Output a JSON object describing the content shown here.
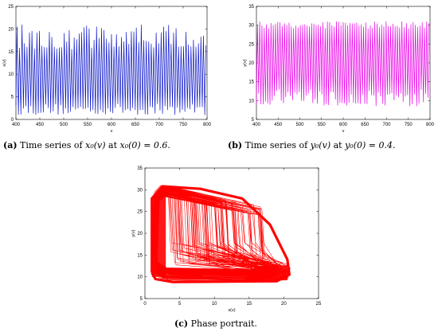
{
  "captions": {
    "a": {
      "tag": "(a)",
      "text": "Time series of",
      "expr": "x₀(v)",
      "mid": "at",
      "cond": "x₀(0) = 0.6."
    },
    "b": {
      "tag": "(b)",
      "text": "Time series of",
      "expr": "y₀(v)",
      "mid": "at",
      "cond": "y₀(0) = 0.4."
    },
    "c": {
      "tag": "(c)",
      "text": "Phase portrait.",
      "expr": "",
      "mid": "",
      "cond": ""
    }
  },
  "chart_data": [
    {
      "id": "a",
      "type": "line",
      "title": "",
      "xlabel": "v",
      "ylabel": "x(v)",
      "xlim": [
        400,
        800
      ],
      "ylim": [
        0,
        25
      ],
      "xticks": [
        400,
        450,
        500,
        550,
        600,
        650,
        700,
        750,
        800
      ],
      "yticks": [
        0,
        5,
        10,
        15,
        20,
        25
      ],
      "color": "#0a14c8",
      "grid": false,
      "series": [
        {
          "x_range": [
            400,
            800
          ],
          "y_range": [
            1.0,
            21.0
          ],
          "oscillation_period_approx": 5.2
        }
      ]
    },
    {
      "id": "b",
      "type": "line",
      "title": "",
      "xlabel": "v",
      "ylabel": "y(v)",
      "xlim": [
        400,
        800
      ],
      "ylim": [
        5,
        35
      ],
      "xticks": [
        400,
        450,
        500,
        550,
        600,
        650,
        700,
        750,
        800
      ],
      "yticks": [
        5,
        10,
        15,
        20,
        25,
        30,
        35
      ],
      "color": "#e800e8",
      "grid": false,
      "series": [
        {
          "x_range": [
            400,
            800
          ],
          "y_range": [
            8.5,
            31.0
          ],
          "oscillation_period_approx": 5.2
        }
      ]
    },
    {
      "id": "c",
      "type": "line",
      "title": "",
      "xlabel": "x(v)",
      "ylabel": "y(v)",
      "xlim": [
        0,
        25
      ],
      "ylim": [
        5,
        35
      ],
      "xticks": [
        0,
        5,
        10,
        15,
        20,
        25
      ],
      "yticks": [
        5,
        10,
        15,
        20,
        25,
        30,
        35
      ],
      "color": "#ff0000",
      "grid": false,
      "series": [
        {
          "x_range": [
            1.0,
            21.0
          ],
          "y_range": [
            8.5,
            31.0
          ]
        }
      ]
    }
  ]
}
